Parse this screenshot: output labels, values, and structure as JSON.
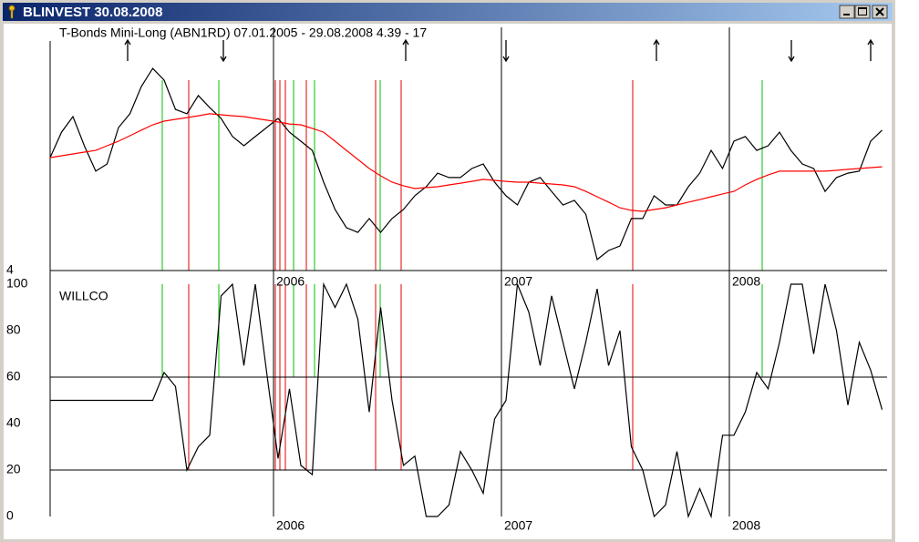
{
  "window": {
    "title": "BLINVEST  30.08.2008"
  },
  "chart_data": [
    {
      "type": "line",
      "title": "T-Bonds Mini-Long (ABN1RD)  07.01.2005 - 29.08.2008  4.39 - 17",
      "xlim": [
        2005.02,
        2008.67
      ],
      "xticks": [
        2006,
        2007,
        2008
      ],
      "ylim": [
        4,
        18
      ],
      "yticks": [
        4
      ],
      "x": [
        2005.02,
        2005.07,
        2005.12,
        2005.17,
        2005.22,
        2005.27,
        2005.32,
        2005.37,
        2005.42,
        2005.47,
        2005.52,
        2005.57,
        2005.62,
        2005.67,
        2005.72,
        2005.77,
        2005.82,
        2005.87,
        2005.92,
        2005.97,
        2006.02,
        2006.07,
        2006.12,
        2006.17,
        2006.22,
        2006.27,
        2006.32,
        2006.37,
        2006.42,
        2006.47,
        2006.52,
        2006.57,
        2006.62,
        2006.67,
        2006.72,
        2006.77,
        2006.82,
        2006.87,
        2006.92,
        2006.97,
        2007.02,
        2007.07,
        2007.12,
        2007.17,
        2007.22,
        2007.27,
        2007.32,
        2007.37,
        2007.42,
        2007.47,
        2007.52,
        2007.57,
        2007.62,
        2007.67,
        2007.72,
        2007.77,
        2007.82,
        2007.87,
        2007.92,
        2007.97,
        2008.02,
        2008.07,
        2008.12,
        2008.17,
        2008.22,
        2008.27,
        2008.32,
        2008.37,
        2008.42,
        2008.47,
        2008.52,
        2008.57,
        2008.62,
        2008.67
      ],
      "series": [
        {
          "color": "#000000",
          "values": [
            10.89,
            12.44,
            13.39,
            11.61,
            10.06,
            10.5,
            12.72,
            13.56,
            15.22,
            16.33,
            15.61,
            13.83,
            13.56,
            14.67,
            13.94,
            13.28,
            12.17,
            11.61,
            12.17,
            12.72,
            13.28,
            12.44,
            11.89,
            11.33,
            9.39,
            7.72,
            6.61,
            6.33,
            7.17,
            6.33,
            7.17,
            7.72,
            8.56,
            9.11,
            9.94,
            9.67,
            9.67,
            10.22,
            10.5,
            9.39,
            8.56,
            8.0,
            9.39,
            9.67,
            8.83,
            8.0,
            8.28,
            7.44,
            4.67,
            5.22,
            5.5,
            7.17,
            7.17,
            8.56,
            8.0,
            8.0,
            9.11,
            9.94,
            11.33,
            10.22,
            11.89,
            12.17,
            11.33,
            11.61,
            12.44,
            11.33,
            10.5,
            10.22,
            8.83,
            9.67,
            9.94,
            10.06,
            11.89,
            12.56
          ]
        },
        {
          "color": "#ff0000",
          "values": [
            10.89,
            11.0,
            11.11,
            11.22,
            11.33,
            11.61,
            11.89,
            12.22,
            12.56,
            12.89,
            13.11,
            13.22,
            13.33,
            13.44,
            13.56,
            13.5,
            13.44,
            13.39,
            13.28,
            13.17,
            13.06,
            12.94,
            12.89,
            12.67,
            12.44,
            11.89,
            11.33,
            10.78,
            10.22,
            9.78,
            9.39,
            9.17,
            9.0,
            9.06,
            9.11,
            9.22,
            9.33,
            9.44,
            9.56,
            9.5,
            9.44,
            9.39,
            9.39,
            9.33,
            9.28,
            9.22,
            9.11,
            8.83,
            8.5,
            8.17,
            7.83,
            7.67,
            7.61,
            7.72,
            7.83,
            8.0,
            8.17,
            8.33,
            8.5,
            8.67,
            8.83,
            9.22,
            9.56,
            9.83,
            10.06,
            10.06,
            10.06,
            10.06,
            10.06,
            10.11,
            10.17,
            10.22,
            10.28,
            10.33
          ]
        }
      ],
      "signals": [
        {
          "color": "#00c000",
          "x": [
            2005.512,
            2005.76,
            2006.088,
            2006.18,
            2006.468,
            2007.0,
            2008.144
          ]
        },
        {
          "color": "#e00000",
          "x": [
            2005.628,
            2006.008,
            2006.028,
            2006.052,
            2006.144,
            2006.448,
            2006.56,
            2007.576
          ]
        }
      ],
      "arrows": {
        "up": [
          2005.36,
          2006.58,
          2007.68,
          2008.62
        ],
        "down": [
          2005.78,
          2007.02,
          2008.272
        ]
      }
    },
    {
      "type": "line",
      "title": "WILLCO",
      "xlim": [
        2005.02,
        2008.67
      ],
      "xticks": [
        2006,
        2007,
        2008
      ],
      "ylim": [
        0,
        100
      ],
      "yticks": [
        0,
        20,
        40,
        60,
        80,
        100
      ],
      "hlines": [
        60,
        20
      ],
      "x": [
        2005.02,
        2005.07,
        2005.12,
        2005.17,
        2005.22,
        2005.27,
        2005.32,
        2005.37,
        2005.42,
        2005.47,
        2005.52,
        2005.57,
        2005.62,
        2005.67,
        2005.72,
        2005.77,
        2005.82,
        2005.87,
        2005.92,
        2005.97,
        2006.02,
        2006.07,
        2006.12,
        2006.17,
        2006.22,
        2006.27,
        2006.32,
        2006.37,
        2006.42,
        2006.47,
        2006.52,
        2006.57,
        2006.62,
        2006.67,
        2006.72,
        2006.77,
        2006.82,
        2006.87,
        2006.92,
        2006.97,
        2007.02,
        2007.07,
        2007.12,
        2007.17,
        2007.22,
        2007.27,
        2007.32,
        2007.37,
        2007.42,
        2007.47,
        2007.52,
        2007.57,
        2007.62,
        2007.67,
        2007.72,
        2007.77,
        2007.82,
        2007.87,
        2007.92,
        2007.97,
        2008.02,
        2008.07,
        2008.12,
        2008.17,
        2008.22,
        2008.27,
        2008.32,
        2008.37,
        2008.42,
        2008.47,
        2008.52,
        2008.57,
        2008.62,
        2008.67
      ],
      "series": [
        {
          "color": "#000000",
          "values": [
            50,
            50,
            50,
            50,
            50,
            50,
            50,
            50,
            50,
            50,
            62,
            56,
            20,
            30,
            35,
            95,
            100,
            65,
            100,
            62,
            25,
            55,
            22,
            18,
            100,
            90,
            100,
            85,
            45,
            90,
            50,
            22,
            26,
            0,
            0,
            5,
            28,
            20,
            10,
            42,
            50,
            100,
            88,
            65,
            95,
            75,
            55,
            75,
            98,
            65,
            80,
            30,
            20,
            0,
            5,
            28,
            0,
            12,
            0,
            35,
            35,
            45,
            62,
            55,
            75,
            100,
            100,
            70,
            100,
            80,
            48,
            75,
            63,
            46
          ]
        }
      ]
    }
  ]
}
